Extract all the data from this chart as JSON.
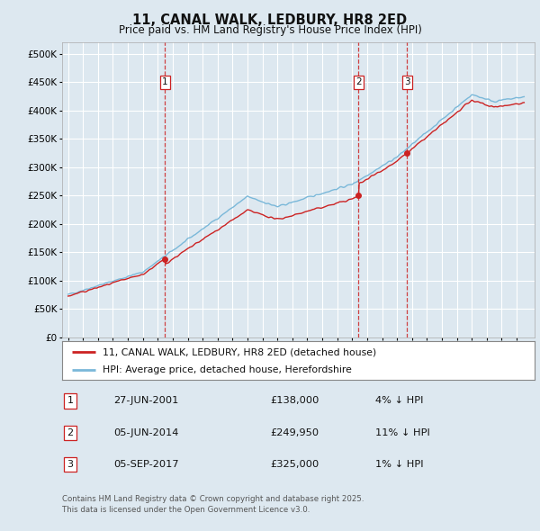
{
  "title": "11, CANAL WALK, LEDBURY, HR8 2ED",
  "subtitle": "Price paid vs. HM Land Registry's House Price Index (HPI)",
  "legend_line1": "11, CANAL WALK, LEDBURY, HR8 2ED (detached house)",
  "legend_line2": "HPI: Average price, detached house, Herefordshire",
  "sales": [
    {
      "label": "1",
      "date_num": 2001.49,
      "price": 138000
    },
    {
      "label": "2",
      "date_num": 2014.43,
      "price": 249950
    },
    {
      "label": "3",
      "date_num": 2017.68,
      "price": 325000
    }
  ],
  "sale_dates_text": [
    "27-JUN-2001",
    "05-JUN-2014",
    "05-SEP-2017"
  ],
  "sale_prices_text": [
    "£138,000",
    "£249,950",
    "£325,000"
  ],
  "sale_notes_text": [
    "4% ↓ HPI",
    "11% ↓ HPI",
    "1% ↓ HPI"
  ],
  "hpi_color": "#7ab8d9",
  "price_color": "#cc2222",
  "background_color": "#dde8f0",
  "plot_bg_color": "#dde8f0",
  "grid_color": "#ffffff",
  "ylim": [
    0,
    520000
  ],
  "yticks": [
    0,
    50000,
    100000,
    150000,
    200000,
    250000,
    300000,
    350000,
    400000,
    450000,
    500000
  ],
  "copyright": "Contains HM Land Registry data © Crown copyright and database right 2025.",
  "licence": "This data is licensed under the Open Government Licence v3.0."
}
